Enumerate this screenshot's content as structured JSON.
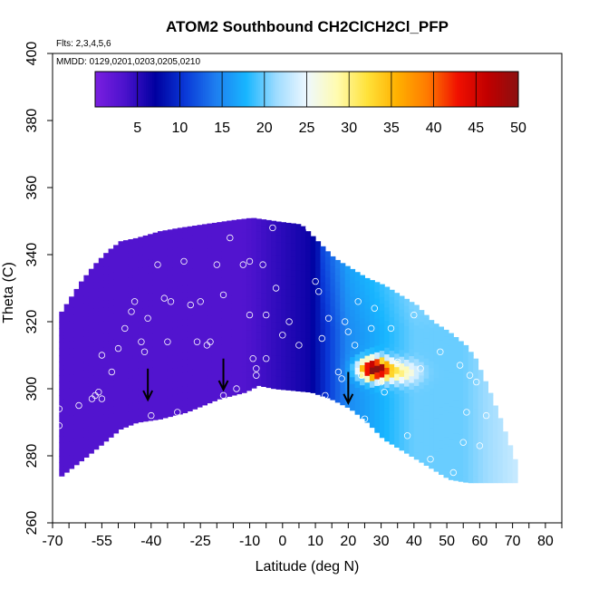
{
  "chart_data": {
    "type": "heatmap",
    "title": "ATOM2 Southbound CH2ClCH2Cl_PFP",
    "flights_label": "Flts: 2,3,4,5,6",
    "dates_label": "MMDD: 0129,0201,0203,0205,0210",
    "xlabel": "Latitude (deg N)",
    "ylabel": "Theta (C)",
    "xlim": [
      -70,
      85
    ],
    "ylim": [
      260,
      400
    ],
    "x_ticks": [
      -70,
      -55,
      -40,
      -25,
      -10,
      0,
      10,
      20,
      30,
      40,
      50,
      60,
      70,
      80
    ],
    "y_ticks": [
      260,
      280,
      300,
      320,
      340,
      360,
      380,
      400
    ],
    "colorbar": {
      "range": [
        0,
        50
      ],
      "ticks": [
        5,
        10,
        15,
        20,
        25,
        30,
        35,
        40,
        45,
        50
      ],
      "colors": [
        "#7b1fe0",
        "#4a12cc",
        "#0000a0",
        "#0a3ad8",
        "#1e7ff0",
        "#18b6ff",
        "#9fdcff",
        "#eef8ff",
        "#fffbb0",
        "#ffe23a",
        "#ffb000",
        "#ff7a00",
        "#f01000",
        "#c00000",
        "#8b1010"
      ]
    },
    "upper_boundary": [
      [
        -68,
        323
      ],
      [
        -62,
        332
      ],
      [
        -58,
        337
      ],
      [
        -54,
        341
      ],
      [
        -50,
        344
      ],
      [
        -45,
        345
      ],
      [
        -38,
        347
      ],
      [
        -32,
        348
      ],
      [
        -25,
        349
      ],
      [
        -18,
        350
      ],
      [
        -10,
        351
      ],
      [
        -3,
        350
      ],
      [
        5,
        349
      ],
      [
        10,
        344
      ],
      [
        15,
        339
      ],
      [
        20,
        336
      ],
      [
        25,
        333
      ],
      [
        30,
        331
      ],
      [
        35,
        328
      ],
      [
        40,
        325
      ],
      [
        45,
        320
      ],
      [
        50,
        317
      ],
      [
        55,
        313
      ],
      [
        58,
        309
      ],
      [
        62,
        300
      ],
      [
        66,
        290
      ],
      [
        70,
        279
      ],
      [
        71,
        271
      ]
    ],
    "lower_boundary": [
      [
        -68,
        274
      ],
      [
        -60,
        280
      ],
      [
        -55,
        284
      ],
      [
        -50,
        288
      ],
      [
        -45,
        290
      ],
      [
        -38,
        291
      ],
      [
        -30,
        293
      ],
      [
        -20,
        297
      ],
      [
        -12,
        299
      ],
      [
        -8,
        301
      ],
      [
        -3,
        300
      ],
      [
        8,
        299
      ],
      [
        14,
        297
      ],
      [
        20,
        294
      ],
      [
        25,
        290
      ],
      [
        30,
        285
      ],
      [
        35,
        282
      ],
      [
        40,
        279
      ],
      [
        45,
        276
      ],
      [
        50,
        273
      ],
      [
        56,
        272
      ],
      [
        60,
        272
      ],
      [
        66,
        272
      ],
      [
        70,
        272
      ]
    ],
    "hotspot": {
      "lat": 28,
      "theta": 306,
      "value": 46
    },
    "points": [
      [
        -68,
        289
      ],
      [
        -68,
        294
      ],
      [
        -62,
        295
      ],
      [
        -58,
        297
      ],
      [
        -57,
        298
      ],
      [
        -56,
        299
      ],
      [
        -55,
        297
      ],
      [
        -55,
        310
      ],
      [
        -52,
        305
      ],
      [
        -50,
        312
      ],
      [
        -48,
        318
      ],
      [
        -46,
        323
      ],
      [
        -45,
        326
      ],
      [
        -43,
        314
      ],
      [
        -42,
        311
      ],
      [
        -41,
        321
      ],
      [
        -40,
        292
      ],
      [
        -38,
        337
      ],
      [
        -36,
        327
      ],
      [
        -35,
        314
      ],
      [
        -34,
        326
      ],
      [
        -32,
        293
      ],
      [
        -30,
        338
      ],
      [
        -28,
        325
      ],
      [
        -26,
        314
      ],
      [
        -25,
        326
      ],
      [
        -23,
        313
      ],
      [
        -22,
        314
      ],
      [
        -20,
        337
      ],
      [
        -18,
        328
      ],
      [
        -18,
        298
      ],
      [
        -16,
        345
      ],
      [
        -14,
        300
      ],
      [
        -12,
        337
      ],
      [
        -10,
        322
      ],
      [
        -10,
        338
      ],
      [
        -9,
        309
      ],
      [
        -8,
        306
      ],
      [
        -8,
        304
      ],
      [
        -7,
        298
      ],
      [
        -6,
        337
      ],
      [
        -5,
        322
      ],
      [
        -5,
        309
      ],
      [
        -3,
        348
      ],
      [
        -2,
        330
      ],
      [
        0,
        316
      ],
      [
        2,
        320
      ],
      [
        5,
        313
      ],
      [
        8,
        348
      ],
      [
        9,
        348
      ],
      [
        10,
        332
      ],
      [
        11,
        329
      ],
      [
        12,
        315
      ],
      [
        13,
        298
      ],
      [
        14,
        321
      ],
      [
        15,
        295
      ],
      [
        17,
        305
      ],
      [
        18,
        303
      ],
      [
        19,
        320
      ],
      [
        20,
        317
      ],
      [
        22,
        313
      ],
      [
        23,
        326
      ],
      [
        24,
        304
      ],
      [
        25,
        291
      ],
      [
        27,
        318
      ],
      [
        28,
        324
      ],
      [
        30,
        302
      ],
      [
        31,
        299
      ],
      [
        33,
        318
      ],
      [
        35,
        308
      ],
      [
        38,
        286
      ],
      [
        40,
        322
      ],
      [
        42,
        306
      ],
      [
        45,
        279
      ],
      [
        48,
        311
      ],
      [
        52,
        275
      ],
      [
        54,
        307
      ],
      [
        55,
        284
      ],
      [
        56,
        293
      ],
      [
        57,
        304
      ],
      [
        59,
        302
      ],
      [
        60,
        283
      ],
      [
        62,
        292
      ]
    ],
    "arrows": [
      [
        -41,
        298
      ],
      [
        -18,
        301
      ],
      [
        20,
        297
      ]
    ]
  }
}
